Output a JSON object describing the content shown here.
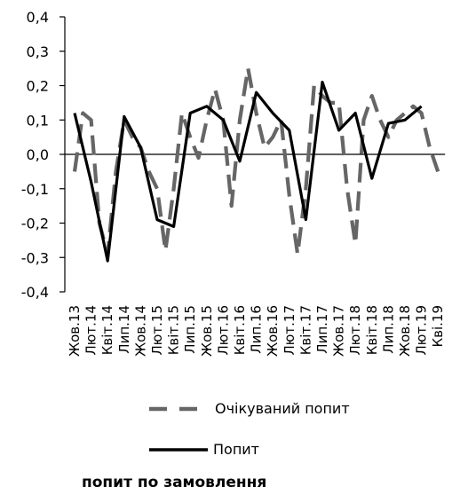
{
  "chart_data": {
    "type": "line",
    "categories": [
      "Жов.13",
      "Лют.14",
      "Квіт.14",
      "Лип.14",
      "Жов.14",
      "Лют.15",
      "Квіт.15",
      "Лип.15",
      "Жов.15",
      "Лют.16",
      "Квіт.16",
      "Лип.16",
      "Жов.16",
      "Лют.17",
      "Квіт.17",
      "Лип.17",
      "Жов.17",
      "Лют.18",
      "Квіт.18",
      "Лип.18",
      "Жов.18",
      "Лют.19",
      "Кві.19"
    ],
    "series": [
      {
        "name": "Очікуваний попит",
        "style": "dashed",
        "color": "#666666",
        "x": [
          0,
          0.5,
          1,
          1.5,
          2,
          2.5,
          3,
          3.5,
          4,
          4.5,
          5,
          5.5,
          6,
          6.5,
          7,
          7.5,
          8,
          8.5,
          9,
          9.5,
          10,
          10.5,
          11,
          11.5,
          12,
          12.5,
          13,
          13.5,
          14,
          14.5,
          15,
          15.5,
          16,
          16.5,
          17,
          17.5,
          18,
          18.5,
          19,
          19.5,
          20,
          20.5,
          21,
          21.5,
          22
        ],
        "values": [
          -0.05,
          0.12,
          0.1,
          -0.2,
          -0.29,
          -0.05,
          0.1,
          0.05,
          0.02,
          -0.05,
          -0.1,
          -0.28,
          -0.1,
          0.12,
          0.05,
          -0.01,
          0.1,
          0.19,
          0.1,
          -0.15,
          0.1,
          0.25,
          0.12,
          0.02,
          0.05,
          0.1,
          -0.12,
          -0.29,
          -0.1,
          0.2,
          0.17,
          0.15,
          0.15,
          -0.1,
          -0.26,
          0.1,
          0.17,
          0.1,
          0.05,
          0.1,
          0.12,
          0.14,
          0.12,
          0.02,
          -0.05
        ]
      },
      {
        "name": "Попит",
        "style": "solid",
        "color": "#000000",
        "x": [
          0,
          1,
          2,
          3,
          4,
          5,
          6,
          7,
          8,
          9,
          10,
          11,
          12,
          13,
          14,
          15,
          16,
          17,
          18,
          19,
          20,
          21
        ],
        "values": [
          0.12,
          -0.08,
          -0.31,
          0.11,
          0.02,
          -0.19,
          -0.21,
          0.12,
          0.14,
          0.1,
          -0.02,
          0.18,
          0.12,
          0.07,
          -0.19,
          0.21,
          0.07,
          0.12,
          -0.07,
          0.09,
          0.1,
          0.14
        ]
      }
    ],
    "yticks": [
      "0,4",
      "0,3",
      "0,2",
      "0,1",
      "0,0",
      "-0,1",
      "-0,2",
      "-0,3",
      "-0,4"
    ],
    "ylim": [
      -0.4,
      0.4
    ],
    "grid": false,
    "legend_position": "bottom",
    "footer": "попит по замовлення"
  }
}
